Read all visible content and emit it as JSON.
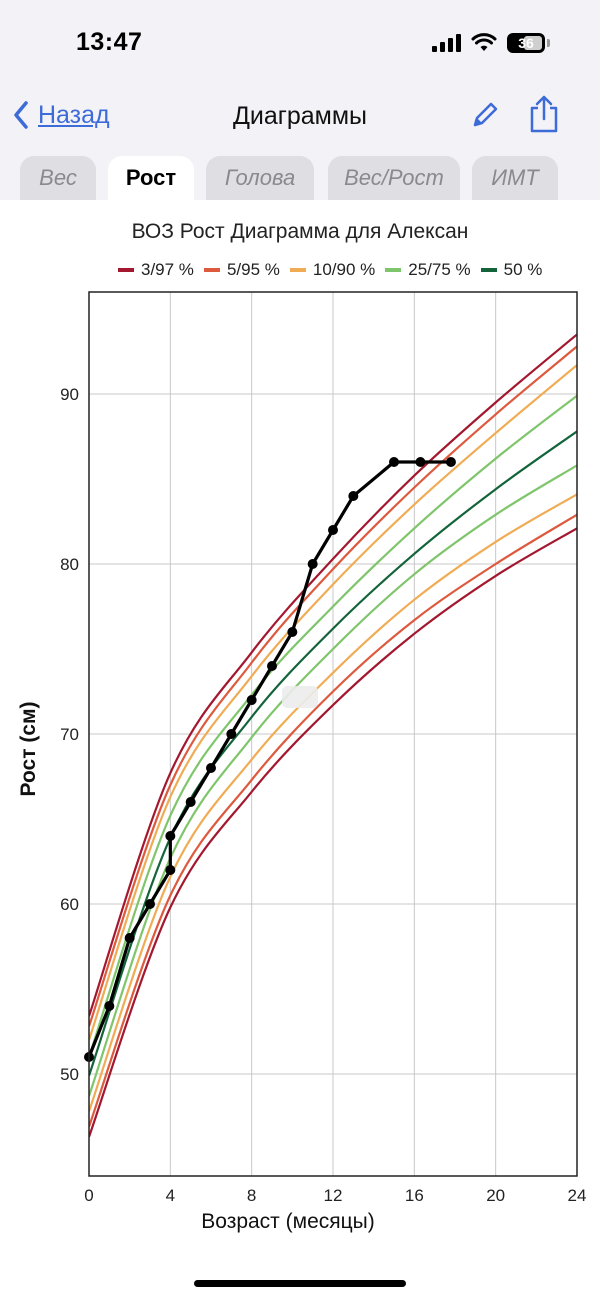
{
  "status_bar": {
    "time": "13:47",
    "battery": "36"
  },
  "nav": {
    "back_label": "Назад",
    "title": "Диаграммы"
  },
  "tabs": [
    {
      "label": "Вес",
      "active": false
    },
    {
      "label": "Рост",
      "active": true
    },
    {
      "label": "Голова",
      "active": false
    },
    {
      "label": "Вес/Рост",
      "active": false
    },
    {
      "label": "ИМТ",
      "active": false
    }
  ],
  "colors": {
    "accent": "#3d6bd8",
    "line3_97": "#a3182f",
    "line5_95": "#dd5a3e",
    "line10_90": "#f0ac55",
    "line25_75": "#7fc56b",
    "line50": "#13643a",
    "child": "#000000"
  },
  "chart_data": {
    "type": "line",
    "title": "ВОЗ Рост Диаграмма для Алексан",
    "xlabel": "Возраст (месяцы)",
    "ylabel": "Рост (см)",
    "xlim": [
      0,
      24
    ],
    "ylim": [
      44,
      96
    ],
    "xticks": [
      "0",
      "4",
      "8",
      "12",
      "16",
      "20",
      "24"
    ],
    "yticks": [
      "50",
      "60",
      "70",
      "80",
      "90"
    ],
    "grid": true,
    "legend_position": "top",
    "legend": [
      {
        "label": "3/97 %",
        "color": "#a3182f"
      },
      {
        "label": "5/95 %",
        "color": "#dd5a3e"
      },
      {
        "label": "10/90 %",
        "color": "#f0ac55"
      },
      {
        "label": "25/75 %",
        "color": "#7fc56b"
      },
      {
        "label": "50 %",
        "color": "#13643a"
      }
    ],
    "series": [
      {
        "group": "3/97 %",
        "color": "#a3182f",
        "x": [
          0,
          4,
          8,
          12,
          16,
          20,
          24
        ],
        "y": [
          46.3,
          59.8,
          66.6,
          71.7,
          75.9,
          79.3,
          82.1
        ]
      },
      {
        "group": "5/95 %",
        "color": "#dd5a3e",
        "x": [
          0,
          4,
          8,
          12,
          16,
          20,
          24
        ],
        "y": [
          46.9,
          60.5,
          67.3,
          72.5,
          76.7,
          80.0,
          82.9
        ]
      },
      {
        "group": "10/90 %",
        "color": "#f0ac55",
        "x": [
          0,
          4,
          8,
          12,
          16,
          20,
          24
        ],
        "y": [
          47.8,
          61.6,
          68.5,
          73.6,
          77.9,
          81.3,
          84.1
        ]
      },
      {
        "group": "25/75 %",
        "color": "#7fc56b",
        "x": [
          0,
          4,
          8,
          12,
          16,
          20,
          24
        ],
        "y": [
          48.7,
          62.7,
          69.8,
          75.0,
          79.4,
          82.9,
          85.8
        ]
      },
      {
        "group": "50 %",
        "color": "#13643a",
        "x": [
          0,
          4,
          8,
          12,
          16,
          20,
          24
        ],
        "y": [
          49.9,
          63.9,
          71.0,
          76.2,
          80.6,
          84.4,
          87.8
        ]
      },
      {
        "group": "25/75 %",
        "color": "#7fc56b",
        "x": [
          0,
          4,
          8,
          12,
          16,
          20,
          24
        ],
        "y": [
          51.0,
          65.2,
          72.3,
          77.5,
          82.1,
          86.2,
          89.9
        ]
      },
      {
        "group": "10/90 %",
        "color": "#f0ac55",
        "x": [
          0,
          4,
          8,
          12,
          16,
          20,
          24
        ],
        "y": [
          52.0,
          66.3,
          73.4,
          78.8,
          83.5,
          87.7,
          91.7
        ]
      },
      {
        "group": "5/95 %",
        "color": "#dd5a3e",
        "x": [
          0,
          4,
          8,
          12,
          16,
          20,
          24
        ],
        "y": [
          52.8,
          67.0,
          74.2,
          79.7,
          84.5,
          88.8,
          92.8
        ]
      },
      {
        "group": "3/97 %",
        "color": "#a3182f",
        "x": [
          0,
          4,
          8,
          12,
          16,
          20,
          24
        ],
        "y": [
          53.4,
          67.7,
          74.8,
          80.3,
          85.2,
          89.5,
          93.5
        ]
      }
    ],
    "child": {
      "color": "#000000",
      "x": [
        0,
        1,
        2,
        3,
        4,
        4,
        5,
        6,
        7,
        8,
        9,
        10,
        11,
        12,
        13,
        15,
        16.3,
        17.8
      ],
      "y": [
        51,
        54,
        58,
        60,
        62,
        64,
        66,
        68,
        70,
        72,
        74,
        76,
        80,
        82,
        84,
        86,
        86,
        86
      ]
    }
  }
}
